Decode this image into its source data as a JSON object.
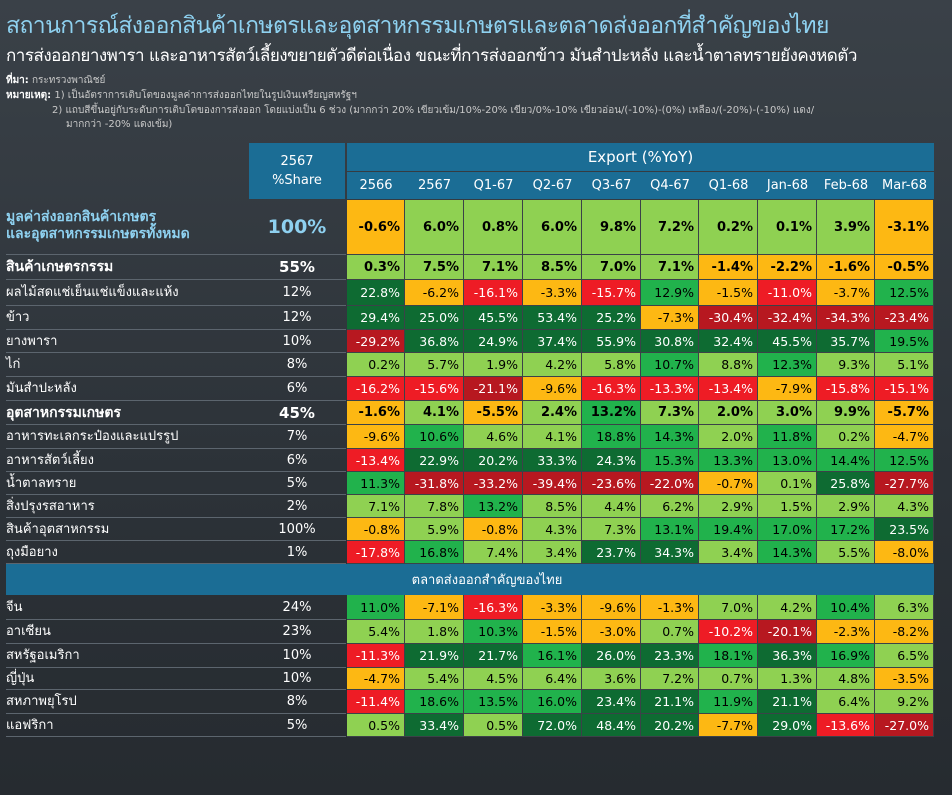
{
  "title": "สถานการณ์ส่งออกสินค้าเกษตรและอุตสาหกรรมเกษตรและตลาดส่งออกที่สำคัญของไทย",
  "subtitle": "การส่งออกยางพารา และอาหารสัตว์เลี้ยงขยายตัวดีต่อเนื่อง ขณะที่การส่งออกข้าว มันสำปะหลัง และน้ำตาลทรายยังคงหดตัว",
  "source_label": "ที่มา:",
  "source_text": "กระทรวงพาณิชย์",
  "remark_label": "หมายเหตุ:",
  "remark1": "1)  เป็นอัตราการเติบโตของมูลค่าการส่งออกไทยในรูปเงินเหรียญสหรัฐฯ",
  "remark2a": "2)  แถบสีขึ้นอยู่กับระดับการเติบโตของการส่งออก โดยแบ่งเป็น 6 ช่วง (มากกว่า 20% เขียวเข้ม/10%-20% เขียว/0%-10% เขียวอ่อน/(-10%)-(0%) เหลือง/(-20%)-(-10%) แดง/",
  "remark2b": "มากกว่า -20% แดงเข้ม)",
  "colors": {
    "dark_green": "#0e6b32",
    "green": "#21b24c",
    "light_green": "#8fd152",
    "yellow": "#fdb813",
    "red": "#ee1c25",
    "dark_red": "#b71820",
    "header_blue": "#1b6d95",
    "title_blue": "#8ed1f0"
  },
  "header": {
    "share_line1": "2567",
    "share_line2": "%Share",
    "export_label": "Export (%YoY)"
  },
  "section2_label": "ตลาดส่งออกสำคัญของไทย",
  "chart_data": {
    "type": "table",
    "columns": [
      "2566",
      "2567",
      "Q1-67",
      "Q2-67",
      "Q3-67",
      "Q4-67",
      "Q1-68",
      "Jan-68",
      "Feb-68",
      "Mar-68"
    ],
    "rows": [
      {
        "label": "มูลค่าส่งออกสินค้าเกษตร\nและอุตสาหกรรมเกษตรทั้งหมด",
        "share": "100%",
        "values": [
          -0.6,
          6.0,
          0.8,
          6.0,
          9.8,
          7.2,
          0.2,
          0.1,
          3.9,
          -3.1
        ]
      },
      {
        "label": "สินค้าเกษตรกรรม",
        "share": "55%",
        "values": [
          0.3,
          7.5,
          7.1,
          8.5,
          7.0,
          7.1,
          -1.4,
          -2.2,
          -1.6,
          -0.5
        ]
      },
      {
        "label": "ผลไม้สดแช่เย็นแช่แข็งและแห้ง",
        "share": "12%",
        "values": [
          22.8,
          -6.2,
          -16.1,
          -3.3,
          -15.7,
          12.9,
          -1.5,
          -11.0,
          -3.7,
          12.5
        ]
      },
      {
        "label": "ข้าว",
        "share": "12%",
        "values": [
          29.4,
          25.0,
          45.5,
          53.4,
          25.2,
          -7.3,
          -30.4,
          -32.4,
          -34.3,
          -23.4
        ]
      },
      {
        "label": "ยางพารา",
        "share": "10%",
        "values": [
          -29.2,
          36.8,
          24.9,
          37.4,
          55.9,
          30.8,
          32.4,
          45.5,
          35.7,
          19.5
        ]
      },
      {
        "label": "ไก่",
        "share": "8%",
        "values": [
          0.2,
          5.7,
          1.9,
          4.2,
          5.8,
          10.7,
          8.8,
          12.3,
          9.3,
          5.1
        ]
      },
      {
        "label": "มันสำปะหลัง",
        "share": "6%",
        "values": [
          -16.2,
          -15.6,
          -21.1,
          -9.6,
          -16.3,
          -13.3,
          -13.4,
          -7.9,
          -15.8,
          -15.1
        ]
      },
      {
        "label": "อุตสาหกรรมเกษตร",
        "share": "45%",
        "values": [
          -1.6,
          4.1,
          -5.5,
          2.4,
          13.2,
          7.3,
          2.0,
          3.0,
          9.9,
          -5.7
        ]
      },
      {
        "label": "อาหารทะเลกระป๋องและแปรรูป",
        "share": "7%",
        "values": [
          -9.6,
          10.6,
          4.6,
          4.1,
          18.8,
          14.3,
          2.0,
          11.8,
          0.2,
          -4.7
        ]
      },
      {
        "label": "อาหารสัตว์เลี้ยง",
        "share": "6%",
        "values": [
          -13.4,
          22.9,
          20.2,
          33.3,
          24.3,
          15.3,
          13.3,
          13.0,
          14.4,
          12.5
        ]
      },
      {
        "label": "น้ำตาลทราย",
        "share": "5%",
        "values": [
          11.3,
          -31.8,
          -33.2,
          -39.4,
          -23.6,
          -22.0,
          -0.7,
          0.1,
          25.8,
          -27.7
        ]
      },
      {
        "label": "สิ่งปรุงรสอาหาร",
        "share": "2%",
        "values": [
          7.1,
          7.8,
          13.2,
          8.5,
          4.4,
          6.2,
          2.9,
          1.5,
          2.9,
          4.3
        ]
      },
      {
        "label": "สินค้าอุตสาหกรรม",
        "share": "100%",
        "values": [
          -0.8,
          5.9,
          -0.8,
          4.3,
          7.3,
          13.1,
          19.4,
          17.0,
          17.2,
          23.5
        ]
      },
      {
        "label": "ถุงมือยาง",
        "share": "1%",
        "values": [
          -17.8,
          16.8,
          7.4,
          3.4,
          23.7,
          34.3,
          3.4,
          14.3,
          5.5,
          -8.0
        ]
      },
      {
        "label": "จีน",
        "share": "24%",
        "values": [
          11.0,
          -7.1,
          -16.3,
          -3.3,
          -9.6,
          -1.3,
          7.0,
          4.2,
          10.4,
          6.3
        ]
      },
      {
        "label": "อาเซียน",
        "share": "23%",
        "values": [
          5.4,
          1.8,
          10.3,
          -1.5,
          -3.0,
          0.7,
          -10.2,
          -20.1,
          -2.3,
          -8.2
        ]
      },
      {
        "label": "สหรัฐอเมริกา",
        "share": "10%",
        "values": [
          -11.3,
          21.9,
          21.7,
          16.1,
          26.0,
          23.3,
          18.1,
          36.3,
          16.9,
          6.5
        ]
      },
      {
        "label": "ญี่ปุ่น",
        "share": "10%",
        "values": [
          -4.7,
          5.4,
          4.5,
          6.4,
          3.6,
          7.2,
          0.7,
          1.3,
          4.8,
          -3.5
        ]
      },
      {
        "label": "สหภาพยุโรป",
        "share": "8%",
        "values": [
          -11.4,
          18.6,
          13.5,
          16.0,
          23.4,
          21.1,
          11.9,
          21.1,
          6.4,
          9.2
        ]
      },
      {
        "label": "แอฟริกา",
        "share": "5%",
        "values": [
          0.5,
          33.4,
          0.5,
          72.0,
          48.4,
          20.2,
          -7.7,
          29.0,
          -13.6,
          -27.0
        ]
      }
    ]
  }
}
